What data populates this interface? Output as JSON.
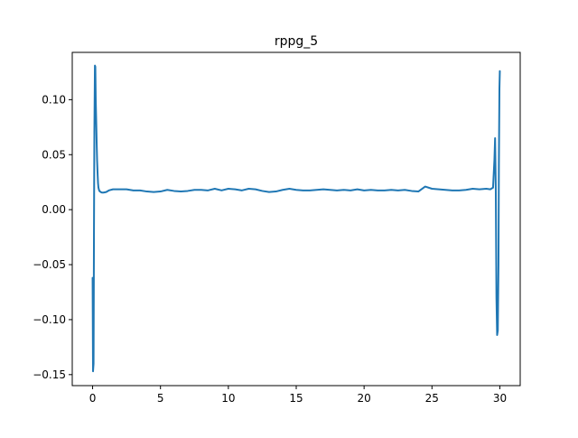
{
  "chart_data": {
    "type": "line",
    "title": "rppg_5",
    "xlabel": "",
    "ylabel": "",
    "xlim": [
      -1.5,
      31.5
    ],
    "ylim": [
      -0.16,
      0.143
    ],
    "xticks": [
      0,
      5,
      10,
      15,
      20,
      25,
      30
    ],
    "xtick_labels": [
      "0",
      "5",
      "10",
      "15",
      "20",
      "25",
      "30"
    ],
    "yticks": [
      -0.15,
      -0.1,
      -0.05,
      0.0,
      0.05,
      0.1
    ],
    "ytick_labels": [
      "−0.15",
      "−0.10",
      "−0.05",
      "0.00",
      "0.05",
      "0.10"
    ],
    "grid": false,
    "legend": "none",
    "line_color": "#1f77b4",
    "series": [
      {
        "x": [
          0,
          0.03,
          0.07,
          0.1,
          0.13,
          0.17,
          0.2,
          0.23,
          0.27,
          0.3,
          0.33,
          0.37,
          0.4,
          0.43,
          0.47,
          0.5,
          0.55,
          0.6,
          0.7,
          0.8,
          1.0,
          1.2,
          1.5,
          2.0,
          2.5,
          3.0,
          3.5,
          4.0,
          4.5,
          5.0,
          5.5,
          6.0,
          6.5,
          7.0,
          7.5,
          8.0,
          8.5,
          9.0,
          9.5,
          10.0,
          10.5,
          11.0,
          11.5,
          12.0,
          12.5,
          13.0,
          13.5,
          14.0,
          14.5,
          15.0,
          15.5,
          16.0,
          16.5,
          17.0,
          17.5,
          18.0,
          18.5,
          19.0,
          19.5,
          20.0,
          20.5,
          21.0,
          21.5,
          22.0,
          22.5,
          23.0,
          23.5,
          24.0,
          24.5,
          25.0,
          25.5,
          26.0,
          26.5,
          27.0,
          27.5,
          28.0,
          28.5,
          29.0,
          29.3,
          29.5,
          29.6,
          29.65,
          29.7,
          29.75,
          29.8,
          29.85,
          29.9,
          29.93,
          29.97,
          30.0
        ],
        "y": [
          -0.062,
          -0.147,
          -0.14,
          -0.02,
          0.07,
          0.131,
          0.13,
          0.1,
          0.078,
          0.06,
          0.045,
          0.032,
          0.024,
          0.02,
          0.018,
          0.017,
          0.0165,
          0.016,
          0.0155,
          0.0155,
          0.016,
          0.0175,
          0.0185,
          0.0185,
          0.0185,
          0.0175,
          0.0175,
          0.0165,
          0.016,
          0.0165,
          0.018,
          0.017,
          0.0165,
          0.017,
          0.018,
          0.018,
          0.0175,
          0.019,
          0.0175,
          0.019,
          0.0185,
          0.0175,
          0.019,
          0.0185,
          0.017,
          0.016,
          0.0165,
          0.018,
          0.019,
          0.018,
          0.0175,
          0.0175,
          0.018,
          0.0185,
          0.018,
          0.0175,
          0.018,
          0.0175,
          0.0185,
          0.0175,
          0.018,
          0.0175,
          0.0175,
          0.018,
          0.0175,
          0.018,
          0.017,
          0.0165,
          0.021,
          0.019,
          0.0185,
          0.018,
          0.0175,
          0.0175,
          0.018,
          0.019,
          0.0185,
          0.019,
          0.0185,
          0.02,
          0.045,
          0.065,
          0.02,
          -0.08,
          -0.114,
          -0.11,
          -0.05,
          0.04,
          0.11,
          0.126
        ]
      }
    ]
  }
}
